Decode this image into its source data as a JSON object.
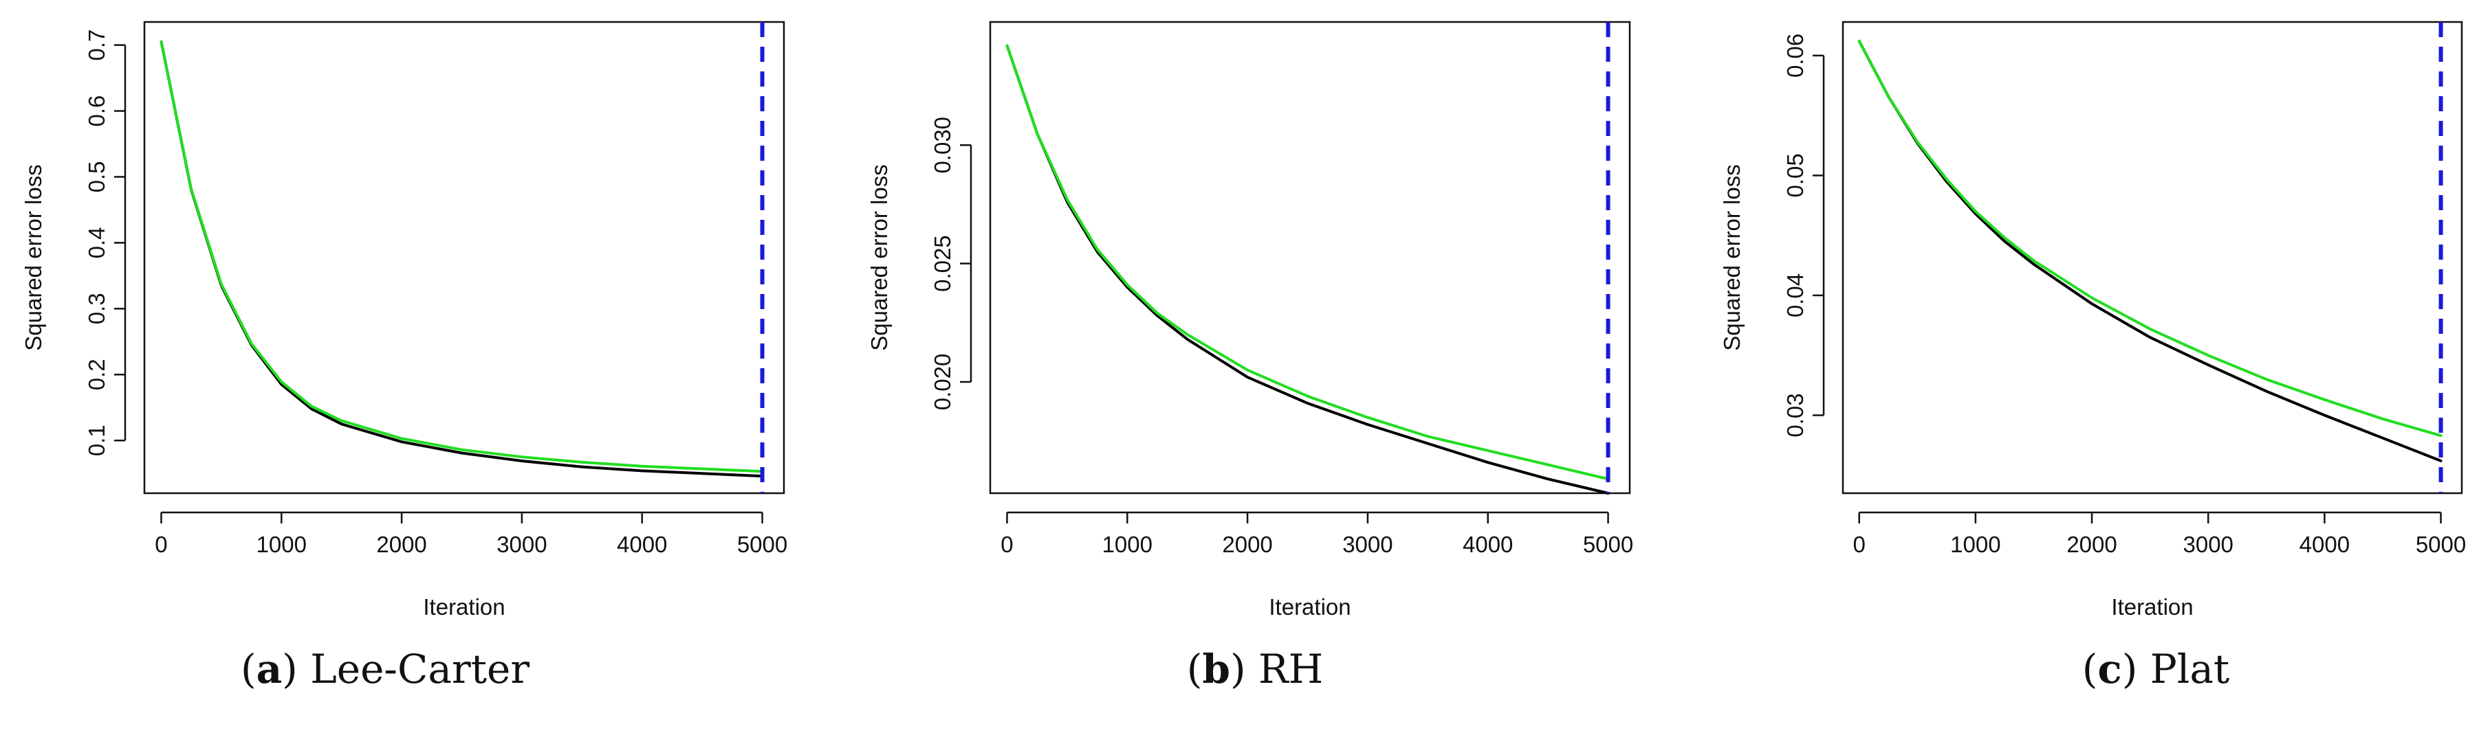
{
  "chart_data": [
    {
      "type": "line",
      "caption_label": "a",
      "caption_title": "Lee-Carter",
      "xlabel": "Iteration",
      "ylabel": "Squared error loss",
      "xlim": [
        -140,
        5180
      ],
      "ylim": [
        0.02,
        0.735
      ],
      "xticks": [
        "0",
        "1000",
        "2000",
        "3000",
        "4000",
        "5000"
      ],
      "yticks": [
        "0.1",
        "0.2",
        "0.3",
        "0.4",
        "0.5",
        "0.6",
        "0.7"
      ],
      "vline": 5000,
      "series": [
        {
          "color": "#000000",
          "x": [
            0,
            250,
            500,
            750,
            1000,
            1250,
            1500,
            2000,
            2500,
            3000,
            3500,
            4000,
            4500,
            5000
          ],
          "values": [
            0.705,
            0.48,
            0.335,
            0.245,
            0.185,
            0.148,
            0.125,
            0.098,
            0.081,
            0.069,
            0.06,
            0.054,
            0.05,
            0.046
          ]
        },
        {
          "color": "#22dd22",
          "x": [
            0,
            250,
            500,
            750,
            1000,
            1250,
            1500,
            2000,
            2500,
            3000,
            3500,
            4000,
            4500,
            5000
          ],
          "values": [
            0.705,
            0.481,
            0.337,
            0.247,
            0.189,
            0.152,
            0.13,
            0.103,
            0.086,
            0.075,
            0.067,
            0.061,
            0.057,
            0.053
          ]
        }
      ]
    },
    {
      "type": "line",
      "caption_label": "b",
      "caption_title": "RH",
      "xlabel": "Iteration",
      "ylabel": "Squared error loss",
      "xlim": [
        -140,
        5180
      ],
      "ylim": [
        0.0153,
        0.0352
      ],
      "xticks": [
        "0",
        "1000",
        "2000",
        "3000",
        "4000",
        "5000"
      ],
      "yticks": [
        "0.020",
        "0.025",
        "0.030"
      ],
      "vline": 5000,
      "series": [
        {
          "color": "#000000",
          "x": [
            0,
            250,
            500,
            750,
            1000,
            1250,
            1500,
            2000,
            2500,
            3000,
            3500,
            4000,
            4500,
            5000
          ],
          "values": [
            0.0342,
            0.0305,
            0.0276,
            0.0255,
            0.024,
            0.0228,
            0.0218,
            0.0202,
            0.0191,
            0.0182,
            0.0174,
            0.0166,
            0.0159,
            0.0153
          ]
        },
        {
          "color": "#22dd22",
          "x": [
            0,
            250,
            500,
            750,
            1000,
            1250,
            1500,
            2000,
            2500,
            3000,
            3500,
            4000,
            4500,
            5000
          ],
          "values": [
            0.0342,
            0.0305,
            0.0277,
            0.0256,
            0.0241,
            0.0229,
            0.022,
            0.0205,
            0.0194,
            0.0185,
            0.0177,
            0.0171,
            0.0165,
            0.0159
          ]
        }
      ]
    },
    {
      "type": "line",
      "caption_label": "c",
      "caption_title": "Plat",
      "xlabel": "Iteration",
      "ylabel": "Squared error loss",
      "xlim": [
        -140,
        5180
      ],
      "ylim": [
        0.0235,
        0.0628
      ],
      "xticks": [
        "0",
        "1000",
        "2000",
        "3000",
        "4000",
        "5000"
      ],
      "yticks": [
        "0.03",
        "0.04",
        "0.05",
        "0.06"
      ],
      "vline": 5000,
      "series": [
        {
          "color": "#000000",
          "x": [
            0,
            250,
            500,
            750,
            1000,
            1250,
            1500,
            2000,
            2500,
            3000,
            3500,
            4000,
            4500,
            5000
          ],
          "values": [
            0.0612,
            0.0566,
            0.0527,
            0.0495,
            0.0468,
            0.0445,
            0.0426,
            0.0393,
            0.0365,
            0.0342,
            0.032,
            0.03,
            0.0281,
            0.0262
          ]
        },
        {
          "color": "#22dd22",
          "x": [
            0,
            250,
            500,
            750,
            1000,
            1250,
            1500,
            2000,
            2500,
            3000,
            3500,
            4000,
            4500,
            5000
          ],
          "values": [
            0.0612,
            0.0566,
            0.0528,
            0.0497,
            0.047,
            0.0448,
            0.0429,
            0.0398,
            0.0372,
            0.035,
            0.033,
            0.0313,
            0.0297,
            0.0283
          ]
        }
      ]
    }
  ]
}
